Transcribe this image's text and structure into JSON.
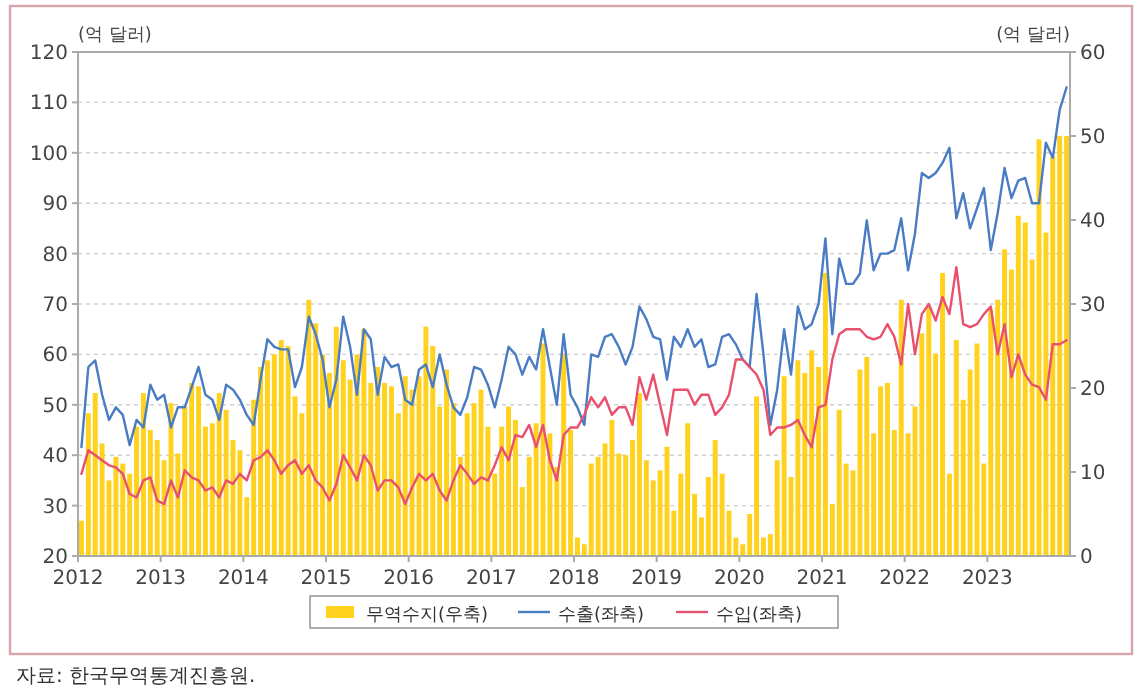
{
  "chart_data": {
    "type": "line",
    "ylabel": "(억 달러)",
    "y2label": "(억 달러)",
    "annotations": [
      "자료: 한국무역통계진흥원."
    ],
    "x": [
      "2012-01",
      "2012-02",
      "2012-03",
      "2012-04",
      "2012-05",
      "2012-06",
      "2012-07",
      "2012-08",
      "2012-09",
      "2012-10",
      "2012-11",
      "2012-12",
      "2013-01",
      "2013-02",
      "2013-03",
      "2013-04",
      "2013-05",
      "2013-06",
      "2013-07",
      "2013-08",
      "2013-09",
      "2013-10",
      "2013-11",
      "2013-12",
      "2014-01",
      "2014-02",
      "2014-03",
      "2014-04",
      "2014-05",
      "2014-06",
      "2014-07",
      "2014-08",
      "2014-09",
      "2014-10",
      "2014-11",
      "2014-12",
      "2015-01",
      "2015-02",
      "2015-03",
      "2015-04",
      "2015-05",
      "2015-06",
      "2015-07",
      "2015-08",
      "2015-09",
      "2015-10",
      "2015-11",
      "2015-12",
      "2016-01",
      "2016-02",
      "2016-03",
      "2016-04",
      "2016-05",
      "2016-06",
      "2016-07",
      "2016-08",
      "2016-09",
      "2016-10",
      "2016-11",
      "2016-12",
      "2017-01",
      "2017-02",
      "2017-03",
      "2017-04",
      "2017-05",
      "2017-06",
      "2017-07",
      "2017-08",
      "2017-09",
      "2017-10",
      "2017-11",
      "2017-12",
      "2018-01",
      "2018-02",
      "2018-03",
      "2018-04",
      "2018-05",
      "2018-06",
      "2018-07",
      "2018-08",
      "2018-09",
      "2018-10",
      "2018-11",
      "2018-12",
      "2019-01",
      "2019-02",
      "2019-03",
      "2019-04",
      "2019-05",
      "2019-06",
      "2019-07",
      "2019-08",
      "2019-09",
      "2019-10",
      "2019-11",
      "2019-12",
      "2020-01",
      "2020-02",
      "2020-03",
      "2020-04",
      "2020-05",
      "2020-06",
      "2020-07",
      "2020-08",
      "2020-09",
      "2020-10",
      "2020-11",
      "2020-12",
      "2021-01",
      "2021-02",
      "2021-03",
      "2021-04",
      "2021-05",
      "2021-06",
      "2021-07",
      "2021-08",
      "2021-09",
      "2021-10",
      "2021-11",
      "2021-12",
      "2022-01",
      "2022-02",
      "2022-03",
      "2022-04",
      "2022-05",
      "2022-06",
      "2022-07",
      "2022-08",
      "2022-09",
      "2022-10",
      "2022-11",
      "2022-12",
      "2023-01",
      "2023-02",
      "2023-03",
      "2023-04",
      "2023-05",
      "2023-06",
      "2023-07",
      "2023-08",
      "2023-09",
      "2023-10",
      "2023-11",
      "2023-12"
    ],
    "series": [
      {
        "name": "무역수지(우축)",
        "type": "bar",
        "axis": "y2",
        "color": "#ffd21f",
        "values": [
          4.2,
          17,
          19.4,
          13.4,
          9,
          11.8,
          11,
          9.8,
          15.4,
          19.4,
          15,
          13.8,
          11.4,
          18.2,
          12.2,
          17.8,
          20.6,
          20.2,
          15.4,
          15.8,
          19.4,
          17.4,
          13.8,
          12.6,
          7,
          18.6,
          22.5,
          23.3,
          24,
          25.7,
          25,
          19,
          17,
          30.5,
          27.7,
          24,
          21.8,
          27.3,
          23.3,
          21,
          24,
          27,
          20.6,
          22.5,
          20.6,
          20.2,
          17,
          21.4,
          19.8,
          21.4,
          27.3,
          25,
          17.8,
          22.2,
          18.2,
          11.8,
          17,
          18.2,
          19.8,
          15.4,
          9.8,
          15.4,
          17.8,
          16.2,
          8.2,
          11.8,
          15.8,
          25.3,
          14.6,
          10.6,
          24.1,
          15,
          2.2,
          1.4,
          11,
          11.8,
          13.4,
          16.2,
          12.2,
          12,
          13.8,
          19.4,
          11.4,
          9,
          10.2,
          13,
          5.4,
          9.8,
          15.8,
          7.4,
          4.6,
          9.4,
          13.8,
          9.8,
          5.4,
          2.2,
          1.4,
          5,
          19,
          2.2,
          2.6,
          11.4,
          21.4,
          9.4,
          23.3,
          21.8,
          24.5,
          22.5,
          33.7,
          6.2,
          17.4,
          11,
          10.2,
          22.2,
          23.7,
          14.6,
          20.2,
          20.6,
          15,
          30.5,
          14.6,
          17.8,
          26.5,
          29.7,
          24.1,
          33.7,
          9.8,
          25.7,
          18.6,
          22.2,
          25.3,
          11,
          29.3,
          30.5,
          36.5,
          34.1,
          40.5,
          39.7,
          35.3,
          49.6,
          38.5,
          47.6,
          50,
          50
        ]
      },
      {
        "name": "수출(좌축)",
        "color": "#4a7cc4",
        "values": [
          41.6,
          57.5,
          58.8,
          52,
          47,
          49.5,
          48,
          42,
          47,
          45.5,
          54,
          51,
          52,
          45.5,
          49.5,
          49.5,
          53.5,
          57.5,
          52,
          51,
          47,
          54,
          53,
          51,
          48,
          46,
          55,
          63,
          61.5,
          61,
          61,
          53.5,
          57.5,
          67.5,
          64,
          59,
          49.5,
          55,
          67.5,
          61.5,
          52,
          65,
          63,
          52,
          59.5,
          57.5,
          58,
          51,
          50,
          57,
          58,
          53.5,
          60,
          54,
          49.5,
          48,
          51.5,
          57.5,
          57,
          54,
          49.5,
          55,
          61.5,
          60,
          56,
          59.5,
          57,
          65,
          57.5,
          50,
          64,
          52,
          49.5,
          46,
          60,
          59.5,
          63.5,
          64,
          61.5,
          58,
          61.5,
          69.5,
          67,
          63.5,
          63,
          55,
          63.5,
          61.5,
          65,
          61.5,
          63,
          57.5,
          58,
          63.5,
          64,
          62,
          59,
          57.5,
          72,
          60,
          46,
          53,
          65,
          56,
          69.5,
          65,
          66,
          70,
          83,
          64,
          79,
          74,
          74,
          76,
          86.6,
          76.7,
          80,
          80,
          80.7,
          87,
          76.7,
          84,
          96,
          95,
          96,
          98,
          101,
          87,
          92,
          85,
          89,
          93,
          80.7,
          88,
          97,
          91,
          94.5,
          95,
          90,
          90,
          102,
          99,
          108.5,
          113
        ]
      },
      {
        "name": "수입(좌축)",
        "color": "#e8506e",
        "values": [
          36.3,
          41,
          40,
          39,
          38,
          37.6,
          36.3,
          32.3,
          31.6,
          35,
          35.6,
          31,
          30.3,
          35,
          31.6,
          37,
          35.6,
          35,
          33,
          33.6,
          31.6,
          35,
          34.3,
          36.3,
          35,
          39,
          39.6,
          41,
          39,
          36.3,
          38,
          39,
          36.3,
          38,
          35,
          33.6,
          31,
          34.3,
          40,
          37.6,
          35,
          40,
          38,
          33,
          35,
          35,
          33.6,
          30.3,
          33.6,
          36.3,
          35,
          36.3,
          33,
          31,
          35,
          38,
          36.3,
          34.3,
          35.6,
          35,
          38,
          41.6,
          39,
          44,
          43.6,
          46,
          41.6,
          46,
          39,
          35,
          44,
          45.5,
          45.5,
          48,
          51.5,
          49.5,
          51.5,
          48,
          49.5,
          49.5,
          46,
          55.5,
          51,
          56,
          50,
          44,
          53,
          53,
          53,
          50,
          52,
          52,
          48,
          49.5,
          52,
          59,
          59,
          57.5,
          56,
          53,
          44,
          45.5,
          45.5,
          46,
          47,
          44,
          41.6,
          49.5,
          50,
          59,
          64,
          65,
          65,
          65,
          63.5,
          63,
          63.5,
          66,
          63.5,
          58,
          70,
          60,
          68,
          70,
          66.7,
          71.4,
          68,
          77.3,
          66,
          65.4,
          66,
          68,
          69.5,
          60,
          66,
          55.5,
          60,
          56,
          54,
          53.5,
          51,
          62,
          62,
          62.8
        ]
      }
    ],
    "xlim": [
      "2012-01",
      "2024-01"
    ],
    "xticks": [
      "2012",
      "2013",
      "2014",
      "2015",
      "2016",
      "2017",
      "2018",
      "2019",
      "2020",
      "2021",
      "2022",
      "2023"
    ],
    "ylim": [
      20,
      120
    ],
    "yticks": [
      20,
      30,
      40,
      50,
      60,
      70,
      80,
      90,
      100,
      110,
      120
    ],
    "y2lim": [
      0,
      60
    ],
    "y2ticks": [
      0,
      10,
      20,
      30,
      40,
      50,
      60
    ],
    "grid": "y",
    "legend": "bottom"
  }
}
